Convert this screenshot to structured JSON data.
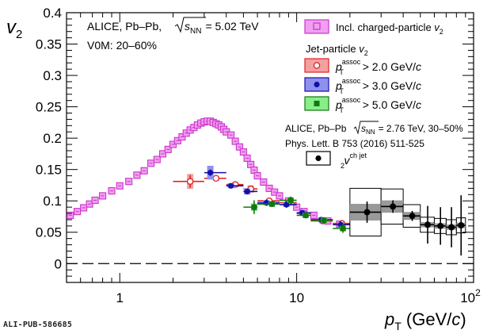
{
  "chart_data": {
    "type": "scatter",
    "xscale": "log",
    "xlim": [
      0.5,
      100
    ],
    "ylim": [
      -0.03,
      0.4
    ],
    "xlabel": {
      "main": "p",
      "sub": "T",
      "suffix": " (GeV/",
      "italic": "c",
      "close": ")"
    },
    "ylabel": {
      "main": "v",
      "sub": "2"
    },
    "xticks": [
      {
        "value": 1,
        "label": "1"
      },
      {
        "value": 10,
        "label": "10"
      },
      {
        "value": 100,
        "base": "10",
        "exp": "2"
      }
    ],
    "yticks": [
      {
        "value": 0,
        "label": "0"
      },
      {
        "value": 0.05,
        "label": "0.05"
      },
      {
        "value": 0.1,
        "label": "0.1"
      },
      {
        "value": 0.15,
        "label": "0.15"
      },
      {
        "value": 0.2,
        "label": "0.2"
      },
      {
        "value": 0.25,
        "label": "0.25"
      },
      {
        "value": 0.3,
        "label": "0.3"
      },
      {
        "value": 0.35,
        "label": "0.35"
      },
      {
        "value": 0.4,
        "label": "0.4"
      }
    ],
    "zero_line": 0,
    "annotations": {
      "line1_prefix": "ALICE, Pb–Pb,",
      "line1_sqrt_s": "s",
      "line1_sqrt_sub": "NN",
      "line1_suffix": "= 5.02 TeV",
      "line2": "V0M: 20–60%",
      "ref_prefix": "ALICE, Pb–Pb",
      "ref_s": "s",
      "ref_sub": "NN",
      "ref_suffix": "= 2.76 TeV, 30–50%",
      "ref_journal": "Phys. Lett. B 753 (2016) 511-525"
    },
    "legend": {
      "charged": {
        "text": "Incl. charged-particle ",
        "v": "v",
        "sub": "2"
      },
      "jet_header": {
        "text": "Jet-particle ",
        "v": "v",
        "sub": "2"
      },
      "jet_entries": [
        {
          "p": "p",
          "sup": "assoc",
          "sub": "T",
          "text": " > 2.0 GeV/",
          "c": "c"
        },
        {
          "p": "p",
          "sup": "assoc",
          "sub": "T",
          "text": " > 3.0 GeV/",
          "c": "c"
        },
        {
          "p": "p",
          "sup": "assoc",
          "sub": "T",
          "text": " > 5.0 GeV/",
          "c": "c"
        }
      ],
      "ref_entry": {
        "v": "v",
        "sub": "2",
        "sup": "ch jet"
      }
    },
    "colors": {
      "charged": "#cc33cc",
      "charged_fill": "#f0a0f0",
      "jet2": "#dd2222",
      "jet2_box": "#f4a0a0",
      "jet3": "#1111aa",
      "jet3_box": "#9090ee",
      "jet5": "#117711",
      "jet5_box": "#88ee88",
      "ref": "#000000",
      "ref_box": "#999999"
    },
    "series": [
      {
        "key": "charged",
        "name": "Incl. charged-particle v2",
        "marker": "open-square",
        "points": [
          {
            "x": 0.525,
            "y": 0.077
          },
          {
            "x": 0.575,
            "y": 0.083
          },
          {
            "x": 0.625,
            "y": 0.089
          },
          {
            "x": 0.675,
            "y": 0.095
          },
          {
            "x": 0.725,
            "y": 0.101
          },
          {
            "x": 0.8,
            "y": 0.108
          },
          {
            "x": 0.9,
            "y": 0.116
          },
          {
            "x": 1.0,
            "y": 0.124
          },
          {
            "x": 1.125,
            "y": 0.131
          },
          {
            "x": 1.25,
            "y": 0.141
          },
          {
            "x": 1.375,
            "y": 0.148
          },
          {
            "x": 1.5,
            "y": 0.16
          },
          {
            "x": 1.625,
            "y": 0.166
          },
          {
            "x": 1.75,
            "y": 0.175
          },
          {
            "x": 1.875,
            "y": 0.182
          },
          {
            "x": 2.0,
            "y": 0.19
          },
          {
            "x": 2.125,
            "y": 0.196
          },
          {
            "x": 2.25,
            "y": 0.202
          },
          {
            "x": 2.375,
            "y": 0.208
          },
          {
            "x": 2.5,
            "y": 0.213
          },
          {
            "x": 2.625,
            "y": 0.217
          },
          {
            "x": 2.75,
            "y": 0.221
          },
          {
            "x": 2.875,
            "y": 0.224
          },
          {
            "x": 3.0,
            "y": 0.226
          },
          {
            "x": 3.125,
            "y": 0.227
          },
          {
            "x": 3.25,
            "y": 0.227
          },
          {
            "x": 3.375,
            "y": 0.225
          },
          {
            "x": 3.5,
            "y": 0.223
          },
          {
            "x": 3.625,
            "y": 0.221
          },
          {
            "x": 3.75,
            "y": 0.218
          },
          {
            "x": 3.875,
            "y": 0.214
          },
          {
            "x": 4.0,
            "y": 0.21
          },
          {
            "x": 4.25,
            "y": 0.205
          },
          {
            "x": 4.5,
            "y": 0.195
          },
          {
            "x": 4.75,
            "y": 0.186
          },
          {
            "x": 5.0,
            "y": 0.178
          },
          {
            "x": 5.25,
            "y": 0.168
          },
          {
            "x": 5.5,
            "y": 0.158
          },
          {
            "x": 5.75,
            "y": 0.149
          },
          {
            "x": 6.0,
            "y": 0.14
          },
          {
            "x": 6.5,
            "y": 0.13
          },
          {
            "x": 7.0,
            "y": 0.12
          },
          {
            "x": 7.5,
            "y": 0.114
          },
          {
            "x": 8.0,
            "y": 0.108
          },
          {
            "x": 9.0,
            "y": 0.1
          },
          {
            "x": 10.0,
            "y": 0.09
          },
          {
            "x": 11.0,
            "y": 0.083
          },
          {
            "x": 12.5,
            "y": 0.077
          },
          {
            "x": 15.0,
            "y": 0.068
          },
          {
            "x": 17.5,
            "y": 0.063
          }
        ]
      },
      {
        "key": "jet2",
        "name": "pT assoc > 2.0 GeV/c",
        "marker": "open-circle",
        "points": [
          {
            "x": 2.5,
            "xlo": 2.0,
            "xhi": 3.0,
            "y": 0.131,
            "ey": 0.01,
            "sy": 0.012
          },
          {
            "x": 3.5,
            "xlo": 3.0,
            "xhi": 4.0,
            "y": 0.136,
            "ey": 0.004,
            "sy": 0.004
          },
          {
            "x": 4.5,
            "xlo": 4.0,
            "xhi": 5.0,
            "y": 0.126,
            "ey": 0.004,
            "sy": 0.004
          },
          {
            "x": 5.5,
            "xlo": 5.0,
            "xhi": 6.0,
            "y": 0.119,
            "ey": 0.004,
            "sy": 0.006
          },
          {
            "x": 7.0,
            "xlo": 6.0,
            "xhi": 8.0,
            "y": 0.1,
            "ey": 0.004,
            "sy": 0.004
          },
          {
            "x": 9.0,
            "xlo": 8.0,
            "xhi": 10.0,
            "y": 0.097,
            "ey": 0.004,
            "sy": 0.004
          },
          {
            "x": 11.0,
            "xlo": 10.0,
            "xhi": 12.0,
            "y": 0.08,
            "ey": 0.004,
            "sy": 0.004
          },
          {
            "x": 14.0,
            "xlo": 12.0,
            "xhi": 16.0,
            "y": 0.068,
            "ey": 0.004,
            "sy": 0.004
          },
          {
            "x": 18.0,
            "xlo": 16.0,
            "xhi": 20.0,
            "y": 0.064,
            "ey": 0.004,
            "sy": 0.004
          }
        ]
      },
      {
        "key": "jet3",
        "name": "pT assoc > 3.0 GeV/c",
        "marker": "filled-circle",
        "points": [
          {
            "x": 3.25,
            "xlo": 3.0,
            "xhi": 4.0,
            "y": 0.145,
            "ey": 0.005,
            "sy": 0.011
          },
          {
            "x": 4.25,
            "xlo": 4.0,
            "xhi": 5.0,
            "y": 0.124,
            "ey": 0.004,
            "sy": 0.004
          },
          {
            "x": 5.25,
            "xlo": 5.0,
            "xhi": 6.0,
            "y": 0.115,
            "ey": 0.004,
            "sy": 0.005
          },
          {
            "x": 6.75,
            "xlo": 6.0,
            "xhi": 8.0,
            "y": 0.097,
            "ey": 0.005,
            "sy": 0.004
          },
          {
            "x": 8.75,
            "xlo": 8.0,
            "xhi": 10.0,
            "y": 0.094,
            "ey": 0.005,
            "sy": 0.004
          },
          {
            "x": 10.75,
            "xlo": 10.0,
            "xhi": 12.0,
            "y": 0.081,
            "ey": 0.004,
            "sy": 0.004
          },
          {
            "x": 13.75,
            "xlo": 12.0,
            "xhi": 16.0,
            "y": 0.07,
            "ey": 0.004,
            "sy": 0.004
          },
          {
            "x": 17.75,
            "xlo": 16.0,
            "xhi": 20.0,
            "y": 0.062,
            "ey": 0.005,
            "sy": 0.004
          }
        ]
      },
      {
        "key": "jet5",
        "name": "pT assoc > 5.0 GeV/c",
        "marker": "filled-square",
        "points": [
          {
            "x": 5.75,
            "xlo": 5.0,
            "xhi": 6.0,
            "y": 0.09,
            "ey": 0.011,
            "sy": 0.006
          },
          {
            "x": 7.25,
            "xlo": 6.0,
            "xhi": 8.0,
            "y": 0.095,
            "ey": 0.005,
            "sy": 0.004
          },
          {
            "x": 9.25,
            "xlo": 8.0,
            "xhi": 10.0,
            "y": 0.101,
            "ey": 0.006,
            "sy": 0.004
          },
          {
            "x": 11.25,
            "xlo": 10.0,
            "xhi": 12.0,
            "y": 0.077,
            "ey": 0.005,
            "sy": 0.004
          },
          {
            "x": 14.25,
            "xlo": 12.0,
            "xhi": 16.0,
            "y": 0.069,
            "ey": 0.005,
            "sy": 0.004
          },
          {
            "x": 18.25,
            "xlo": 16.0,
            "xhi": 20.0,
            "y": 0.056,
            "ey": 0.007,
            "sy": 0.004
          }
        ]
      },
      {
        "key": "ref",
        "name": "v2 ch jet",
        "marker": "filled-circle",
        "points": [
          {
            "x": 25,
            "xlo": 20,
            "xhi": 30,
            "y": 0.082,
            "ey": 0.017,
            "sy": 0.038
          },
          {
            "x": 35,
            "xlo": 30,
            "xhi": 40,
            "y": 0.091,
            "ey": 0.01,
            "sy": 0.028
          },
          {
            "x": 45,
            "xlo": 40,
            "xhi": 50,
            "y": 0.076,
            "ey": 0.008,
            "sy": 0.018
          },
          {
            "x": 55,
            "xlo": 50,
            "xhi": 60,
            "y": 0.062,
            "ey": 0.03,
            "sy": 0.012
          },
          {
            "x": 65,
            "xlo": 60,
            "xhi": 70,
            "y": 0.06,
            "ey": 0.03,
            "sy": 0.012
          },
          {
            "x": 75,
            "xlo": 70,
            "xhi": 80,
            "y": 0.058,
            "ey": 0.032,
            "sy": 0.012
          },
          {
            "x": 85,
            "xlo": 80,
            "xhi": 90,
            "y": 0.061,
            "ey": 0.048,
            "sy": 0.012
          }
        ]
      }
    ]
  },
  "footer": {
    "id": "ALI-PUB-586685"
  }
}
